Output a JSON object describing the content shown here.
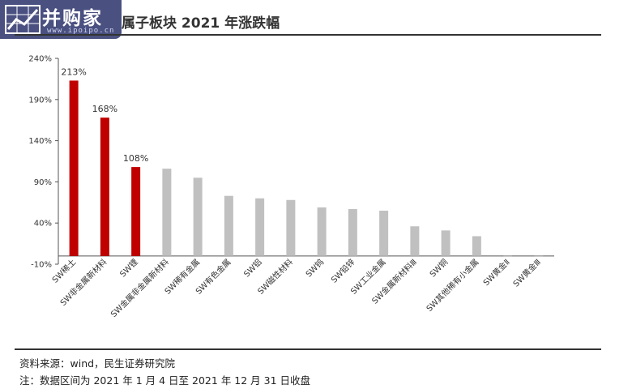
{
  "header": {
    "title": "属子板块 2021 年涨跌幅",
    "logo_text": "并购家",
    "logo_url": "www.ipoipo.cn"
  },
  "colors": {
    "highlight": "#c00000",
    "normal": "#c0c0c0",
    "axis": "#555555",
    "logo_bg": "#4a5080"
  },
  "chart_data": {
    "type": "bar",
    "title": "",
    "xlabel": "",
    "ylabel": "",
    "ylim": [
      -10,
      240
    ],
    "yticks": [
      -10,
      40,
      90,
      140,
      190,
      240
    ],
    "ytick_labels": [
      "-10%",
      "40%",
      "90%",
      "140%",
      "190%",
      "240%"
    ],
    "grid": false,
    "legend": "none",
    "categories": [
      "SW稀土",
      "SW非金属新材料",
      "SW锂",
      "SW金属非金属新材料",
      "SW稀有金属",
      "SW有色金属",
      "SW铝",
      "SW磁性材料",
      "SW钨",
      "SW铅锌",
      "SW工业金属",
      "SW金属新材料Ⅲ",
      "SW铜",
      "SW其他稀有小金属",
      "SW黄金Ⅱ",
      "SW黄金Ⅲ"
    ],
    "values": [
      213,
      168,
      108,
      106,
      95,
      73,
      70,
      68,
      59,
      57,
      55,
      36,
      31,
      24,
      -1,
      -1
    ],
    "highlighted": [
      true,
      true,
      true,
      false,
      false,
      false,
      false,
      false,
      false,
      false,
      false,
      false,
      false,
      false,
      false,
      false
    ],
    "data_labels": [
      "213%",
      "168%",
      "108%",
      "",
      "",
      "",
      "",
      "",
      "",
      "",
      "",
      "",
      "",
      "",
      "",
      ""
    ]
  },
  "footer": {
    "source": "资料来源：wind，民生证券研究院",
    "note": "注：数据区间为 2021 年 1 月 4 日至 2021 年 12 月 31 日收盘"
  }
}
